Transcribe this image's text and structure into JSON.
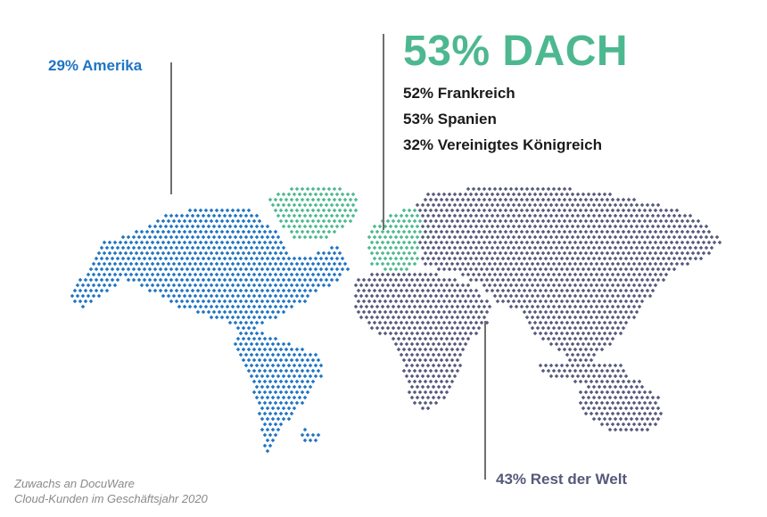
{
  "regions": {
    "amerika": {
      "label": "29% Amerika",
      "color": "#1e74c4"
    },
    "dach": {
      "label": "53% DACH",
      "color": "#4db890",
      "countries": [
        "52% Frankreich",
        "53% Spanien",
        "32% Vereinigtes Königreich"
      ]
    },
    "rest": {
      "label": "43% Rest der Welt",
      "color": "#56597a"
    }
  },
  "caption": {
    "line1": "Zuwachs an DocuWare",
    "line2": "Cloud-Kunden im Geschäftsjahr 2020"
  },
  "colors": {
    "leader_line": "#6f6f6f",
    "text_dark": "#1a1a1a",
    "caption": "#8a8a8a"
  }
}
